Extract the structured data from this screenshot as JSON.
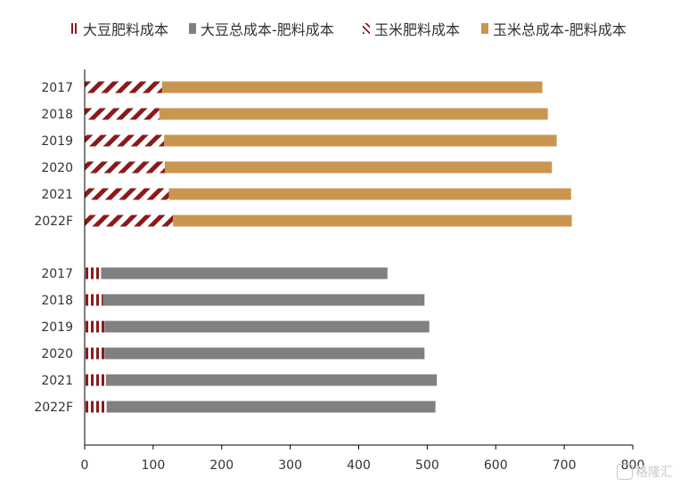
{
  "chart_data": {
    "type": "bar",
    "orientation": "horizontal",
    "stacked": true,
    "groups": [
      {
        "categories": [
          "2017",
          "2018",
          "2019",
          "2020",
          "2021",
          "2022F"
        ],
        "series": [
          {
            "name": "玉米肥料成本",
            "values": [
              113,
              109,
              116,
              117,
              123,
              129
            ],
            "color": "#8b1a1a",
            "pattern": "diagonal"
          },
          {
            "name": "玉米总成本-肥料成本",
            "values": [
              555,
              567,
              573,
              565,
              587,
              582
            ],
            "color": "#c8964e"
          }
        ]
      },
      {
        "categories": [
          "2017",
          "2018",
          "2019",
          "2020",
          "2021",
          "2022F"
        ],
        "series": [
          {
            "name": "大豆肥料成本",
            "values": [
              24,
              27,
              29,
              29,
              31,
              32
            ],
            "color": "#8b1a1a",
            "pattern": "vertical"
          },
          {
            "name": "大豆总成本-肥料成本",
            "values": [
              418,
              469,
              474,
              467,
              483,
              480
            ],
            "color": "#808080"
          }
        ]
      }
    ],
    "xlim": [
      0,
      800
    ],
    "xticks": [
      0,
      100,
      200,
      300,
      400,
      500,
      600,
      700,
      800
    ],
    "legend_position": "top",
    "grid": false
  },
  "legend": [
    {
      "label": "大豆肥料成本",
      "color": "#8b1a1a",
      "pattern": "vertical"
    },
    {
      "label": "大豆总成本-肥料成本",
      "color": "#808080",
      "pattern": "solid"
    },
    {
      "label": "玉米肥料成本",
      "color": "#8b1a1a",
      "pattern": "diagonal"
    },
    {
      "label": "玉米总成本-肥料成本",
      "color": "#c8964e",
      "pattern": "solid"
    }
  ],
  "watermark": {
    "text": "格隆汇",
    "icon": "gelonghui-logo-icon"
  }
}
